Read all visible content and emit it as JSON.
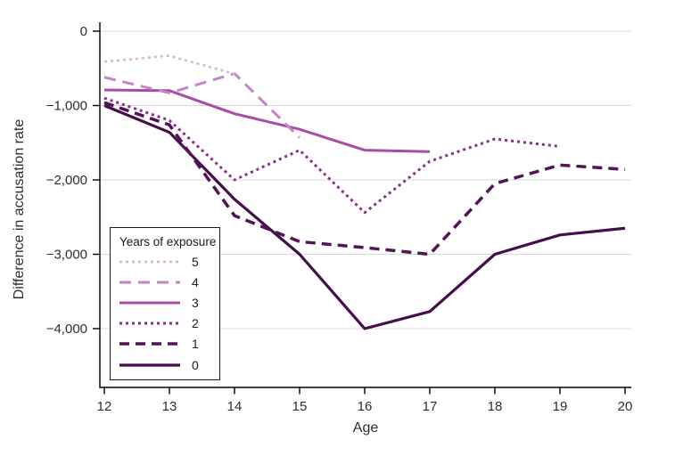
{
  "figure": {
    "background": "#ffffff"
  },
  "axes": {
    "x_title": "Age",
    "y_title": "Difference in accusation rate",
    "x_ticks": [
      12,
      13,
      14,
      15,
      16,
      17,
      18,
      19,
      20
    ],
    "x_tick_labels": [
      "12",
      "13",
      "14",
      "15",
      "16",
      "17",
      "18",
      "19",
      "20"
    ],
    "y_ticks": [
      0,
      -1000,
      -2000,
      -3000,
      -4000
    ],
    "y_tick_labels": [
      "0",
      "−1,000",
      "−2,000",
      "−3,000",
      "−4,000"
    ],
    "grid_color": "#d8d8d8",
    "axis_color": "#000000",
    "tick_label_color": "#2e2e2e"
  },
  "legend": {
    "title": "Years of exposure",
    "items": [
      {
        "label": "5"
      },
      {
        "label": "4"
      },
      {
        "label": "3"
      },
      {
        "label": "2"
      },
      {
        "label": "1"
      },
      {
        "label": "0"
      }
    ]
  },
  "chart_data": {
    "type": "line",
    "title": "",
    "xlabel": "Age",
    "ylabel": "Difference in accusation rate",
    "x_range": [
      12,
      20
    ],
    "y_range": [
      -4800,
      100
    ],
    "grid": "horizontal",
    "legend_position": "inside-lower-left",
    "legend_title": "Years of exposure",
    "series": [
      {
        "name": "5",
        "color": "#d9b3d9",
        "dash": "3 4",
        "width": 2.6,
        "points": [
          [
            12,
            -410
          ],
          [
            13,
            -330
          ],
          [
            14,
            -575
          ]
        ]
      },
      {
        "name": "4",
        "color": "#c286c2",
        "dash": "13 8",
        "width": 3,
        "points": [
          [
            12,
            -620
          ],
          [
            13,
            -830
          ],
          [
            14,
            -570
          ],
          [
            15,
            -1430
          ]
        ]
      },
      {
        "name": "3",
        "color": "#a84ca6",
        "dash": "",
        "width": 3,
        "points": [
          [
            12,
            -790
          ],
          [
            13,
            -800
          ],
          [
            14,
            -1110
          ],
          [
            15,
            -1320
          ],
          [
            16,
            -1600
          ],
          [
            17,
            -1620
          ]
        ]
      },
      {
        "name": "2",
        "color": "#8b2d8b",
        "dash": "3 4",
        "width": 3,
        "points": [
          [
            12,
            -900
          ],
          [
            13,
            -1200
          ],
          [
            14,
            -2000
          ],
          [
            15,
            -1600
          ],
          [
            16,
            -2440
          ],
          [
            17,
            -1750
          ],
          [
            18,
            -1450
          ],
          [
            19,
            -1550
          ]
        ]
      },
      {
        "name": "1",
        "color": "#521457",
        "dash": "11 7",
        "width": 3.5,
        "points": [
          [
            12,
            -960
          ],
          [
            13,
            -1260
          ],
          [
            14,
            -2480
          ],
          [
            15,
            -2830
          ],
          [
            16,
            -2910
          ],
          [
            17,
            -3000
          ],
          [
            18,
            -2050
          ],
          [
            19,
            -1800
          ],
          [
            20,
            -1860
          ]
        ]
      },
      {
        "name": "0",
        "color": "#440e4a",
        "dash": "",
        "width": 3.2,
        "points": [
          [
            12,
            -1000
          ],
          [
            13,
            -1360
          ],
          [
            14,
            -2260
          ],
          [
            15,
            -3000
          ],
          [
            16,
            -4000
          ],
          [
            17,
            -3770
          ],
          [
            18,
            -3000
          ],
          [
            19,
            -2740
          ],
          [
            20,
            -2650
          ]
        ]
      }
    ]
  }
}
